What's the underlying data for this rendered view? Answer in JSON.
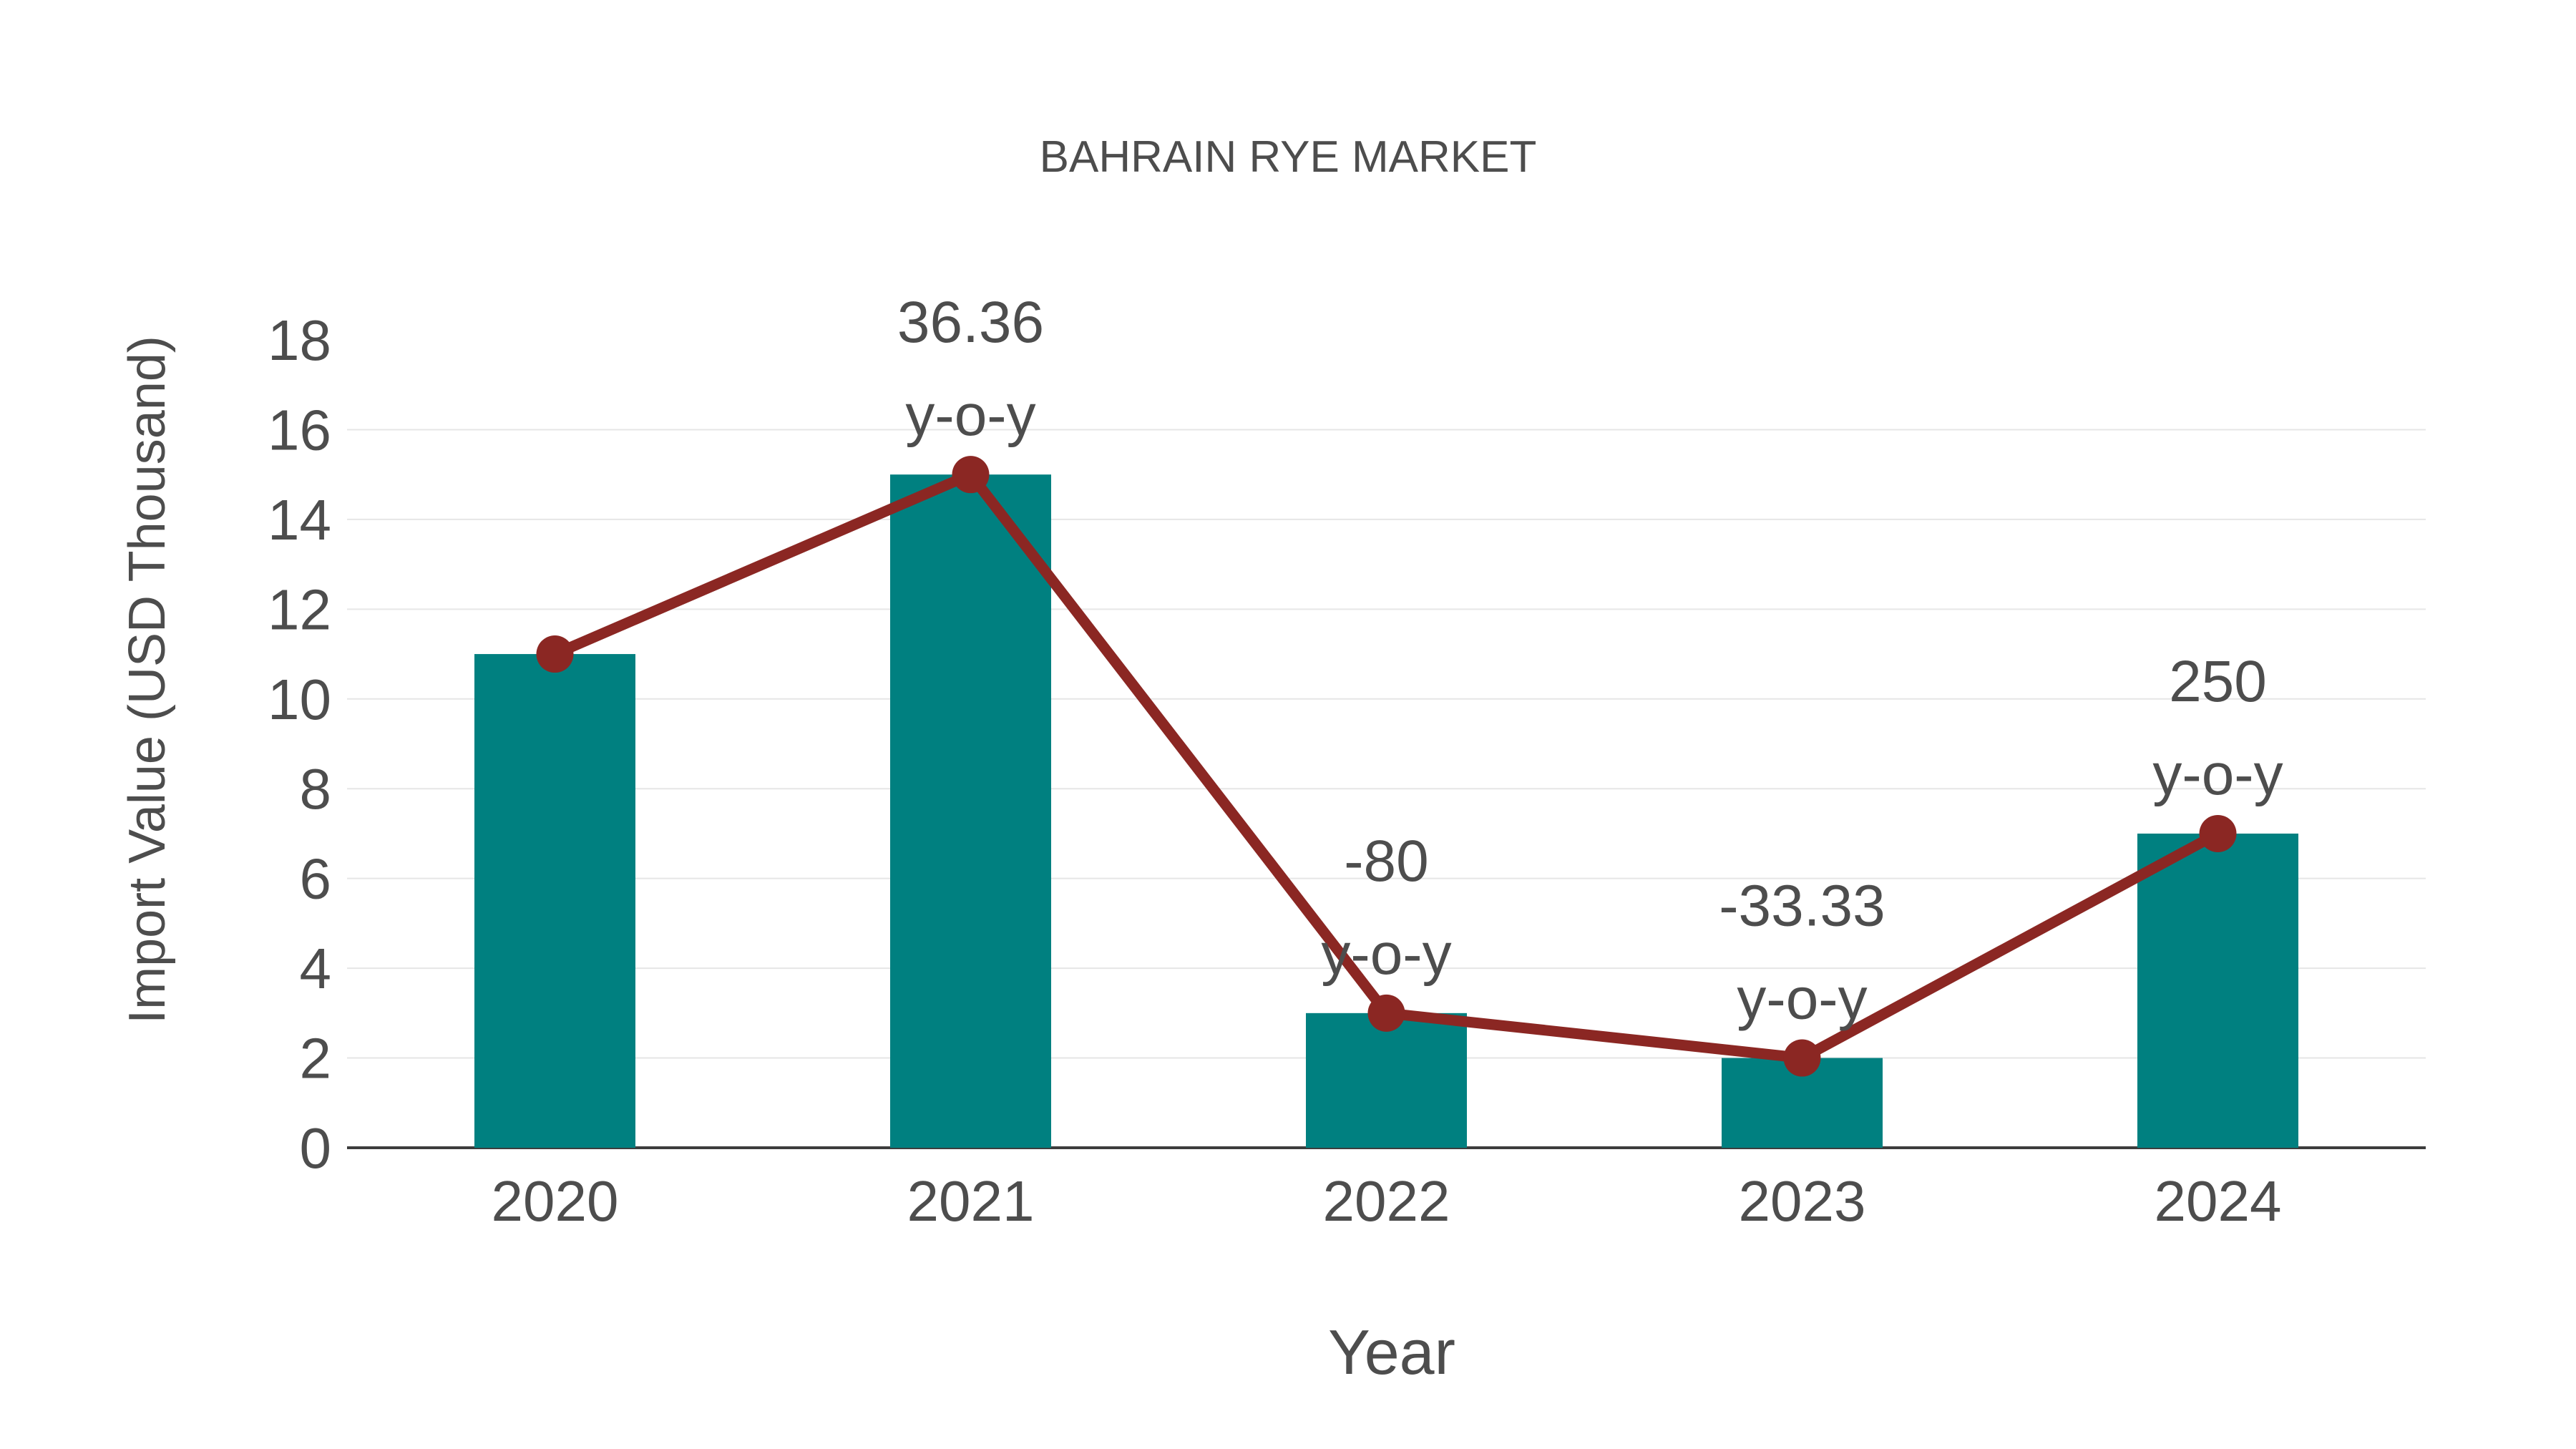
{
  "title": "BAHRAIN RYE MARKET",
  "colors": {
    "bar": "#008080",
    "line": "#8B2723",
    "marker": "#8B2723",
    "text": "#4D4D4D",
    "axis": "#3D3D3D",
    "gridline": "#E6E6E6",
    "background": "#FFFFFF"
  },
  "chart_data": {
    "type": "bar",
    "title": "BAHRAIN RYE MARKET",
    "xlabel": "Year",
    "ylabel": "Import Value (USD Thousand)",
    "categories": [
      "2020",
      "2021",
      "2022",
      "2023",
      "2024"
    ],
    "series": [
      {
        "name": "Import Value (bars)",
        "type": "bar",
        "values": [
          11,
          15,
          3,
          2,
          7
        ]
      },
      {
        "name": "Import Value (line)",
        "type": "line",
        "values": [
          11,
          15,
          3,
          2,
          7
        ]
      }
    ],
    "annotations": [
      {
        "category": "2021",
        "line1": "36.36",
        "line2": "y-o-y"
      },
      {
        "category": "2022",
        "line1": "-80",
        "line2": "y-o-y"
      },
      {
        "category": "2023",
        "line1": "-33.33",
        "line2": "y-o-y"
      },
      {
        "category": "2024",
        "line1": "250",
        "line2": "y-o-y"
      }
    ],
    "ylim": [
      0,
      18
    ],
    "yticks": [
      0,
      2,
      4,
      6,
      8,
      10,
      12,
      14,
      16,
      18
    ],
    "grid": true,
    "legend_position": "none"
  }
}
